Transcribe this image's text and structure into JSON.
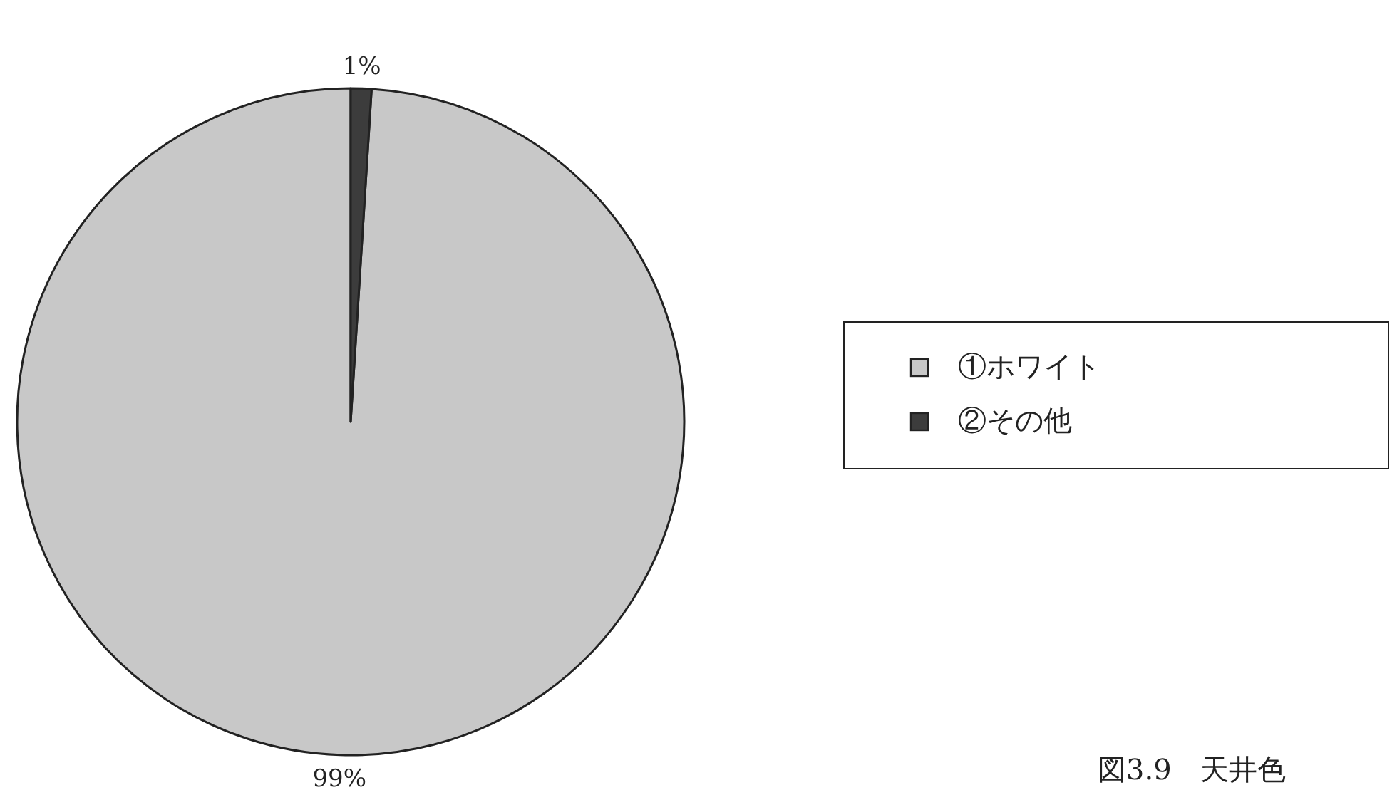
{
  "chart_data": {
    "type": "pie",
    "categories": [
      "①ホワイト",
      "②その他"
    ],
    "values": [
      99,
      1
    ],
    "colors": [
      "#c8c8c8",
      "#3c3c3c"
    ],
    "value_labels": [
      "99%",
      "1%"
    ],
    "legend": "right",
    "annotations": [
      "図3.9　天井色"
    ]
  }
}
